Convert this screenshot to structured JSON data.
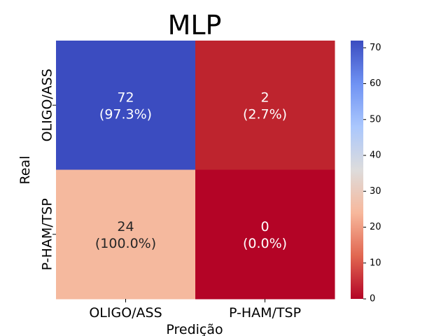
{
  "chart_data": {
    "type": "heatmap",
    "title": "MLP",
    "xlabel": "Predição",
    "ylabel": "Real",
    "x_categories": [
      "OLIGO/ASS",
      "P-HAM/TSP"
    ],
    "y_categories": [
      "OLIGO/ASS",
      "P-HAM/TSP"
    ],
    "values": [
      [
        72,
        2
      ],
      [
        24,
        0
      ]
    ],
    "cell_labels": [
      [
        {
          "count": "72",
          "pct": "(97.3%)"
        },
        {
          "count": "2",
          "pct": "(2.7%)"
        }
      ],
      [
        {
          "count": "24",
          "pct": "(100.0%)"
        },
        {
          "count": "0",
          "pct": "(0.0%)"
        }
      ]
    ],
    "colormap": "coolwarm_r",
    "colorbar": {
      "range": [
        0,
        72
      ],
      "ticks": [
        0,
        10,
        20,
        30,
        40,
        50,
        60,
        70
      ],
      "tick_labels": [
        "0",
        "10",
        "20",
        "30",
        "40",
        "50",
        "60",
        "70"
      ],
      "stops": [
        "#b40426",
        "#e16751",
        "#f7b89c",
        "#dddcdc",
        "#aac7fd",
        "#6f92f3",
        "#3b4cc0"
      ]
    },
    "colors": {
      "cell_0_0": "#3b4cc0",
      "cell_0_1": "#be242e",
      "cell_1_0": "#f5b99e",
      "cell_1_1": "#b40426"
    }
  }
}
